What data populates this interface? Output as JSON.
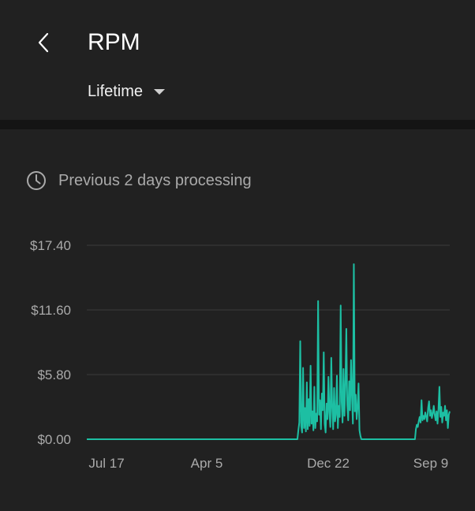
{
  "header": {
    "title": "RPM",
    "range_label": "Lifetime"
  },
  "status": {
    "text": "Previous 2 days processing"
  },
  "icons": {
    "back": "chevron-left-icon",
    "dropdown": "caret-down-icon",
    "status": "clock-icon"
  },
  "colors": {
    "background": "#212121",
    "line": "#1dbfa3",
    "gridline": "#3a3a3a",
    "label": "#aaaaaa"
  },
  "chart_data": {
    "type": "line",
    "title": "",
    "xlabel": "",
    "ylabel": "",
    "ylim": [
      0,
      17.4
    ],
    "grid": true,
    "y_ticks": [
      "$0.00",
      "$5.80",
      "$11.60",
      "$17.40"
    ],
    "y_tick_values": [
      0,
      5.8,
      11.6,
      17.4
    ],
    "x_ticks": [
      "Jul 17",
      "Apr 5",
      "Dec 22",
      "Sep 9"
    ],
    "series": [
      {
        "values": [
          0,
          0,
          0,
          0,
          0,
          0,
          0,
          0,
          0,
          0,
          0,
          0,
          0,
          0,
          0,
          0,
          0,
          0,
          0,
          0,
          0,
          0,
          0,
          0,
          0,
          0,
          0,
          0,
          0,
          0,
          0,
          0,
          0,
          0,
          0,
          0,
          0,
          0,
          0,
          0,
          0,
          0,
          0,
          0,
          0,
          0,
          0,
          0,
          0,
          0,
          0,
          0,
          0,
          0,
          0,
          0,
          0,
          0,
          0,
          0,
          0,
          0,
          0,
          0,
          0,
          0,
          0,
          0,
          0,
          0,
          0,
          0,
          0,
          0,
          0,
          0,
          0,
          0,
          0,
          0,
          0,
          0,
          0,
          0,
          0,
          0,
          0,
          0,
          0,
          0,
          0,
          0,
          0,
          0,
          0,
          0,
          0,
          0,
          0,
          0,
          0,
          0,
          0,
          0,
          0,
          0,
          0,
          0,
          0,
          0,
          0,
          0,
          0,
          0,
          0,
          0,
          0,
          0,
          0,
          0,
          0,
          0,
          0,
          0,
          0,
          0,
          0,
          0,
          0,
          0,
          0,
          0,
          0,
          0,
          0,
          0,
          0,
          0,
          0,
          0,
          0,
          0,
          0,
          0,
          0,
          0,
          0,
          0,
          0,
          0,
          0,
          0,
          0,
          0,
          0,
          0,
          0,
          0,
          0,
          0,
          0,
          0,
          0,
          0,
          0,
          0,
          0,
          0,
          0,
          0,
          0,
          0,
          0,
          0,
          0,
          0,
          0,
          0,
          0,
          0,
          0,
          0,
          0,
          0,
          0,
          0,
          0,
          0,
          0,
          0,
          0,
          0,
          0,
          0,
          0,
          0,
          0,
          0,
          0,
          0,
          0,
          0,
          0,
          0,
          0,
          0,
          0,
          0,
          0,
          0,
          0,
          0,
          0,
          0,
          0,
          0,
          0,
          0,
          0,
          0,
          0,
          0,
          0,
          0,
          0,
          0.8,
          1.5,
          8.8,
          1.2,
          0.6,
          6.4,
          1.0,
          2.8,
          0.7,
          5.1,
          0.9,
          3.6,
          1.2,
          6.6,
          1.4,
          2.5,
          0.8,
          4.7,
          1.0,
          2.3,
          1.6,
          12.4,
          2.2,
          3.5,
          0.9,
          4.1,
          2.6,
          7.8,
          1.4,
          0.6,
          3.2,
          1.8,
          5.6,
          2.4,
          1.1,
          7.3,
          2.8,
          0.9,
          4.6,
          1.6,
          2.2,
          5.7,
          1.0,
          3.0,
          2.0,
          12.0,
          3.4,
          1.5,
          6.3,
          2.1,
          4.8,
          9.9,
          3.1,
          1.7,
          5.2,
          2.6,
          7.1,
          3.9,
          1.4,
          15.7,
          2.5,
          4.0,
          1.8,
          2.9,
          5.0,
          0.8,
          0.3,
          0,
          0,
          0,
          0,
          0,
          0,
          0,
          0,
          0,
          0,
          0,
          0,
          0,
          0,
          0,
          0,
          0,
          0,
          0,
          0,
          0,
          0,
          0,
          0,
          0,
          0,
          0,
          0,
          0,
          0,
          0,
          0,
          0,
          0,
          0,
          0,
          0,
          0,
          0,
          0,
          0,
          0,
          0,
          0,
          0,
          0,
          0,
          0,
          0,
          0,
          0,
          0,
          0,
          0,
          0,
          0,
          0,
          0,
          0.9,
          1.3,
          1.1,
          1.6,
          2.0,
          1.5,
          3.5,
          1.7,
          2.1,
          1.8,
          2.4,
          2.0,
          1.6,
          2.8,
          3.4,
          2.1,
          2.6,
          1.9,
          2.3,
          3.0,
          2.2,
          1.7,
          2.5,
          1.4,
          2.7,
          4.7,
          2.0,
          2.9,
          1.5,
          2.4,
          2.1,
          3.0,
          1.7,
          2.6,
          1.0,
          2.2,
          2.5
        ]
      }
    ]
  }
}
